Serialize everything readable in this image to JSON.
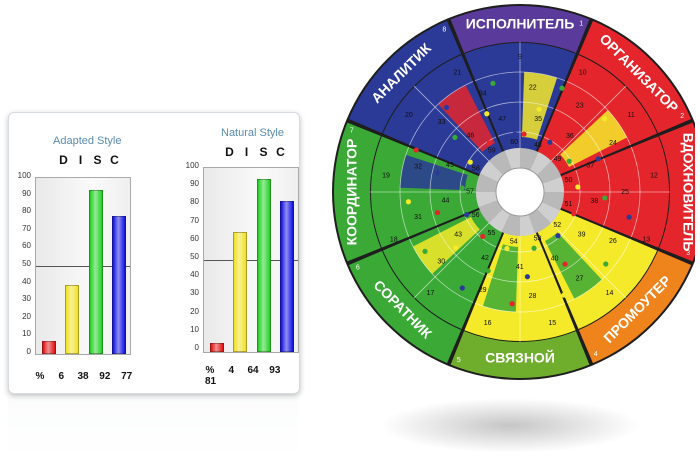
{
  "adapted": {
    "title": "Adapted Style",
    "letters": [
      "D",
      "I",
      "S",
      "C"
    ],
    "values": [
      6,
      38,
      92,
      77
    ],
    "pct_symbol": "%"
  },
  "natural": {
    "title": "Natural Style",
    "letters": [
      "D",
      "I",
      "S",
      "C"
    ],
    "values": [
      4,
      64,
      93,
      81
    ],
    "pct_symbol": "%"
  },
  "y_ticks": [
    "100",
    "90",
    "80",
    "70",
    "60",
    "50",
    "40",
    "30",
    "20",
    "10",
    "0"
  ],
  "chart_data": [
    {
      "type": "bar",
      "title": "Adapted Style",
      "categories": [
        "D",
        "I",
        "S",
        "C"
      ],
      "values": [
        6,
        38,
        92,
        77
      ],
      "ylim": [
        0,
        100
      ],
      "colors": [
        "#e01010",
        "#f0e020",
        "#20d020",
        "#1010e0"
      ]
    },
    {
      "type": "bar",
      "title": "Natural Style",
      "categories": [
        "D",
        "I",
        "S",
        "C"
      ],
      "values": [
        4,
        64,
        93,
        81
      ],
      "ylim": [
        0,
        100
      ],
      "colors": [
        "#e01010",
        "#f0e020",
        "#20d020",
        "#1010e0"
      ]
    }
  ],
  "wheel": {
    "labels": [
      "ИСПОЛНИТЕЛЬ",
      "ОРГАНИЗАТОР",
      "ВДОХНОВИТЕЛЬ",
      "ПРОМОУТЕР",
      "СВЯЗНОЙ",
      "СОРАТНИК",
      "КООРДИНАТОР",
      "АНАЛИТИК"
    ],
    "sector_numbers": [
      "1",
      "2",
      "3",
      "4",
      "5",
      "6",
      "7",
      "8"
    ],
    "ring_numbers": [
      "9",
      "10",
      "11",
      "12",
      "13",
      "14",
      "15",
      "16",
      "17",
      "18",
      "19",
      "20",
      "21",
      "22",
      "23",
      "24",
      "25",
      "26",
      "27",
      "28",
      "29",
      "30",
      "31",
      "32",
      "33",
      "34",
      "35",
      "36",
      "37",
      "38",
      "39",
      "40",
      "41",
      "42",
      "43",
      "44",
      "45",
      "46",
      "47",
      "48",
      "49",
      "50",
      "51",
      "52",
      "53",
      "54",
      "55",
      "56",
      "57",
      "58",
      "59",
      "60"
    ],
    "colors": {
      "red": "#e4262c",
      "yellow": "#f4ea2a",
      "green": "#3aa935",
      "blue": "#2b3a97",
      "rim": "#2a2a2a",
      "hub": "#b9b9b9"
    }
  }
}
